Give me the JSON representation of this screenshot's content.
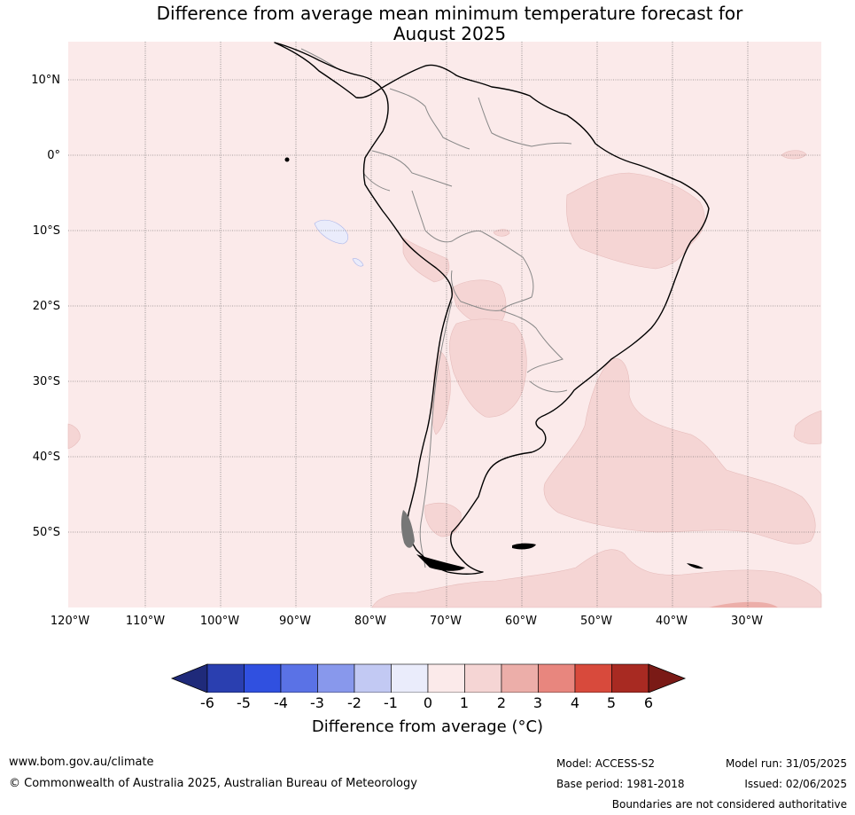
{
  "title_line1": "Difference from average mean minimum temperature forecast for",
  "title_line2": "August 2025",
  "lat_labels": [
    "10°N",
    "0°",
    "10°S",
    "20°S",
    "30°S",
    "40°S",
    "50°S"
  ],
  "lon_labels": [
    "120°W",
    "110°W",
    "100°W",
    "90°W",
    "80°W",
    "70°W",
    "60°W",
    "50°W",
    "40°W",
    "30°W"
  ],
  "colorbar": {
    "ticks": [
      "-6",
      "-5",
      "-4",
      "-3",
      "-2",
      "-1",
      "0",
      "1",
      "2",
      "3",
      "4",
      "5",
      "6"
    ],
    "colors": [
      "#1f2a7a",
      "#2a3fb0",
      "#3050e0",
      "#5a72e6",
      "#8898ec",
      "#c2c9f3",
      "#eaecfb",
      "#fbeaea",
      "#f5d5d4",
      "#ecaea9",
      "#e8867e",
      "#d84a3c",
      "#a82a22",
      "#7a1a16"
    ],
    "label": "Difference from average (°C)"
  },
  "map_colors": {
    "background": "#fbeaea",
    "warm_patch": "#f5d5d4",
    "warmer_patch": "#ecaea9",
    "cool_patch": "#eaecfb"
  },
  "footer": {
    "website": "www.bom.gov.au/climate",
    "copyright": "© Commonwealth of Australia 2025, Australian Bureau of Meteorology",
    "model": "Model: ACCESS-S2",
    "base_period": "Base period: 1981-2018",
    "model_run": "Model run: 31/05/2025",
    "issued": "Issued: 02/06/2025",
    "disclaimer": "Boundaries are not considered authoritative"
  }
}
